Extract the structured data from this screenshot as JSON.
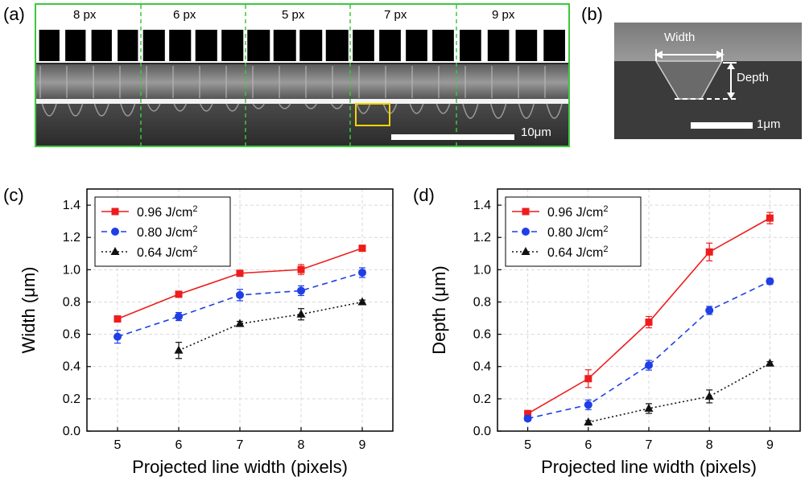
{
  "panels": {
    "a": "(a)",
    "b": "(b)",
    "c": "(c)",
    "d": "(d)"
  },
  "sem_a": {
    "segments": [
      "8 px",
      "6 px",
      "5 px",
      "7 px",
      "9 px"
    ],
    "scale_bar": "10μm"
  },
  "sem_b": {
    "width_label": "Width",
    "depth_label": "Depth",
    "scale_bar": "1μm"
  },
  "colors": {
    "red": "#ee1c1c",
    "blue": "#1f3fe6",
    "black": "#111111",
    "grid": "#d9d9d9",
    "green_border": "#3cc83c",
    "highlight": "#f2d600"
  },
  "chart_data": [
    {
      "type": "line",
      "xlabel": "Projected line width (pixels)",
      "ylabel": "Width (μm)",
      "x": [
        5,
        6,
        7,
        8,
        9
      ],
      "xlim": [
        4.5,
        9.5
      ],
      "ylim": [
        0.0,
        1.5
      ],
      "xticks": [
        "5",
        "6",
        "7",
        "8",
        "9"
      ],
      "yticks": [
        "0.0",
        "0.2",
        "0.4",
        "0.6",
        "0.8",
        "1.0",
        "1.2",
        "1.4"
      ],
      "grid": true,
      "legend_position": "top-left",
      "series": [
        {
          "name": "0.96 J/cm",
          "sup": "2",
          "color": "#ee1c1c",
          "marker": "square",
          "line": "solid",
          "x": [
            5,
            6,
            7,
            8,
            9
          ],
          "values": [
            0.695,
            0.848,
            0.978,
            1.001,
            1.133
          ],
          "err": [
            0.01,
            0.015,
            0.015,
            0.03,
            0.015
          ]
        },
        {
          "name": "0.80 J/cm",
          "sup": "2",
          "color": "#1f3fe6",
          "marker": "circle",
          "line": "dashed",
          "x": [
            5,
            6,
            7,
            8,
            9
          ],
          "values": [
            0.585,
            0.71,
            0.843,
            0.87,
            0.982
          ],
          "err": [
            0.04,
            0.025,
            0.035,
            0.03,
            0.03
          ]
        },
        {
          "name": "0.64 J/cm",
          "sup": "2",
          "color": "#111111",
          "marker": "triangle",
          "line": "dotted",
          "x": [
            6,
            7,
            8,
            9
          ],
          "values": [
            0.5,
            0.665,
            0.724,
            0.8
          ],
          "err": [
            0.05,
            0.015,
            0.035,
            0.012
          ]
        }
      ]
    },
    {
      "type": "line",
      "xlabel": "Projected line width (pixels)",
      "ylabel": "Depth (μm)",
      "x": [
        5,
        6,
        7,
        8,
        9
      ],
      "xlim": [
        4.5,
        9.5
      ],
      "ylim": [
        0.0,
        1.5
      ],
      "xticks": [
        "5",
        "6",
        "7",
        "8",
        "9"
      ],
      "yticks": [
        "0.0",
        "0.2",
        "0.4",
        "0.6",
        "0.8",
        "1.0",
        "1.2",
        "1.4"
      ],
      "grid": true,
      "legend_position": "top-left",
      "series": [
        {
          "name": "0.96 J/cm",
          "sup": "2",
          "color": "#ee1c1c",
          "marker": "square",
          "line": "solid",
          "x": [
            5,
            6,
            7,
            8,
            9
          ],
          "values": [
            0.108,
            0.325,
            0.675,
            1.11,
            1.32
          ],
          "err": [
            0.02,
            0.055,
            0.035,
            0.055,
            0.035
          ]
        },
        {
          "name": "0.80 J/cm",
          "sup": "2",
          "color": "#1f3fe6",
          "marker": "circle",
          "line": "dashed",
          "x": [
            5,
            6,
            7,
            8,
            9
          ],
          "values": [
            0.078,
            0.163,
            0.408,
            0.748,
            0.928
          ],
          "err": [
            0.015,
            0.03,
            0.03,
            0.025,
            0.018
          ]
        },
        {
          "name": "0.64 J/cm",
          "sup": "2",
          "color": "#111111",
          "marker": "triangle",
          "line": "dotted",
          "x": [
            6,
            7,
            8,
            9
          ],
          "values": [
            0.055,
            0.14,
            0.215,
            0.42
          ],
          "err": [
            0.01,
            0.03,
            0.04,
            0.01
          ]
        }
      ]
    }
  ]
}
